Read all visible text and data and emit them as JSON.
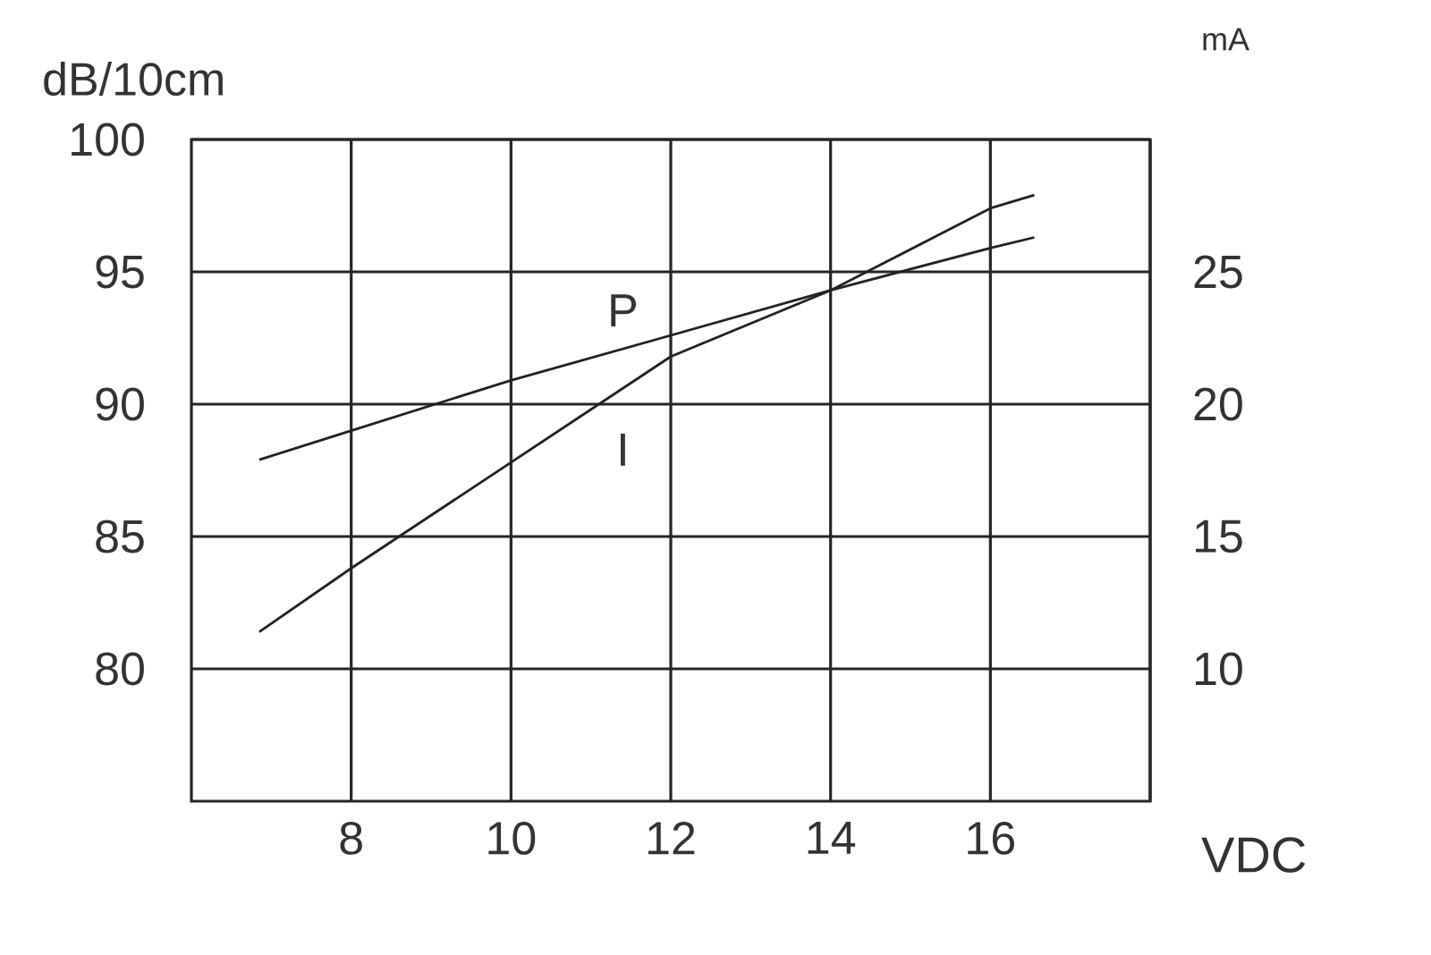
{
  "chart_data": {
    "type": "line",
    "xlabel": "VDC",
    "ylabel": "dB/10cm",
    "y2label": "mA",
    "xlim": [
      6,
      18
    ],
    "xticks": [
      8,
      10,
      12,
      14,
      16
    ],
    "ylim": [
      75,
      100
    ],
    "yticks": [
      80,
      85,
      90,
      95,
      100
    ],
    "y2lim": [
      5,
      30
    ],
    "y2ticks": [
      10,
      15,
      20,
      25
    ],
    "grid": true,
    "marker": "none",
    "line_style": "solid",
    "series": [
      {
        "name": "P",
        "color": "#222222",
        "x": [
          6.85,
          8,
          10,
          12,
          14,
          16,
          16.55
        ],
        "values": [
          87.9,
          89.0,
          90.9,
          92.6,
          94.3,
          95.9,
          96.3
        ]
      },
      {
        "name": "I",
        "color": "#222222",
        "axis": "y2",
        "x": [
          6.85,
          8,
          10,
          12,
          14,
          16,
          16.55
        ],
        "values": [
          11.4,
          13.8,
          17.8,
          21.8,
          24.3,
          27.4,
          27.9
        ]
      }
    ]
  }
}
